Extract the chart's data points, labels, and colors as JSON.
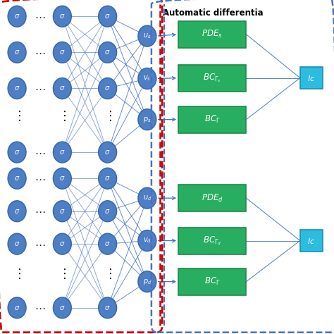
{
  "fig_width": 4.74,
  "fig_height": 4.74,
  "dpi": 100,
  "bg_color": "#ffffff",
  "node_color": "#4E7EC4",
  "node_edge_color": "#3A6AB0",
  "green_box_color": "#27AE60",
  "green_box_edge": "#1e8a4a",
  "cyan_box_color": "#2BBCE0",
  "cyan_box_edge": "#1A90B0",
  "line_color": "#4472C4",
  "red_dash_color": "#CC0000",
  "blue_dash_color": "#4472C4",
  "title": "Automatic differentia",
  "node_r": 0.032
}
